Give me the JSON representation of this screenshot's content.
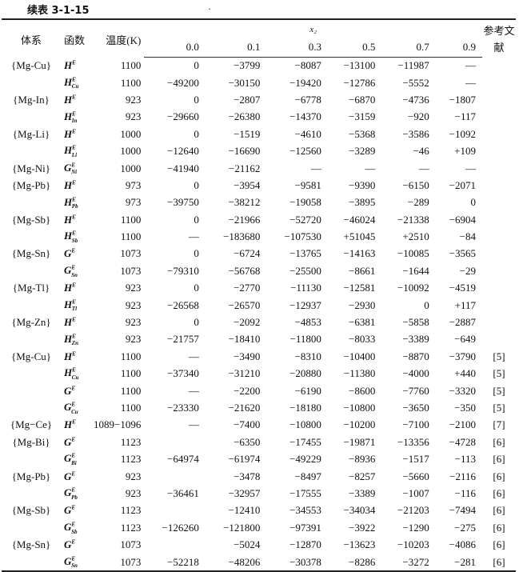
{
  "caption": "续表 3-1-15",
  "header": {
    "system": "体系",
    "function": "函数",
    "temperature": "温度(K)",
    "x_label": "x₂",
    "x_values": [
      "0.0",
      "0.1",
      "0.3",
      "0.5",
      "0.7",
      "0.9"
    ],
    "ref": "参考文献"
  },
  "rows": [
    [
      "{Mg-Cu}",
      "H",
      "",
      "1100",
      "0",
      "−3799",
      "−8087",
      "−13100",
      "−11987",
      "—",
      ""
    ],
    [
      "",
      "H",
      "Cu",
      "1100",
      "−49200",
      "−30150",
      "−19420",
      "−12786",
      "−5552",
      "—",
      ""
    ],
    [
      "{Mg-In}",
      "H",
      "",
      "923",
      "0",
      "−2807",
      "−6778",
      "−6870",
      "−4736",
      "−1807",
      ""
    ],
    [
      "",
      "H",
      "In",
      "923",
      "−29660",
      "−26380",
      "−14370",
      "−3159",
      "−920",
      "−117",
      ""
    ],
    [
      "{Mg-Li}",
      "H",
      "",
      "1000",
      "0",
      "−1519",
      "−4610",
      "−5368",
      "−3586",
      "−1092",
      ""
    ],
    [
      "",
      "H",
      "Li",
      "1000",
      "−12640",
      "−16690",
      "−12560",
      "−3289",
      "−46",
      "+109",
      ""
    ],
    [
      "{Mg-Ni}",
      "G",
      "Ni",
      "1000",
      "−41940",
      "−21162",
      "—",
      "—",
      "—",
      "—",
      ""
    ],
    [
      "{Mg-Pb}",
      "H",
      "",
      "973",
      "0",
      "−3954",
      "−9581",
      "−9390",
      "−6150",
      "−2071",
      ""
    ],
    [
      "",
      "H",
      "Pb",
      "973",
      "−39750",
      "−38212",
      "−19058",
      "−3895",
      "−289",
      "0",
      ""
    ],
    [
      "{Mg-Sb}",
      "H",
      "",
      "1100",
      "0",
      "−21966",
      "−52720",
      "−46024",
      "−21338",
      "−6904",
      ""
    ],
    [
      "",
      "H",
      "Sb",
      "1100",
      "—",
      "−183680",
      "−107530",
      "+51045",
      "+2510",
      "−84",
      ""
    ],
    [
      "{Mg-Sn}",
      "G",
      "",
      "1073",
      "0",
      "−6724",
      "−13765",
      "−14163",
      "−10085",
      "−3565",
      ""
    ],
    [
      "",
      "G",
      "Sn",
      "1073",
      "−79310",
      "−56768",
      "−25500",
      "−8661",
      "−1644",
      "−29",
      ""
    ],
    [
      "{Mg-Tl}",
      "H",
      "",
      "923",
      "0",
      "−2770",
      "−11130",
      "−12581",
      "−10092",
      "−4519",
      ""
    ],
    [
      "",
      "H",
      "Tl",
      "923",
      "−26568",
      "−26570",
      "−12937",
      "−2930",
      "0",
      "+117",
      ""
    ],
    [
      "{Mg-Zn}",
      "H",
      "",
      "923",
      "0",
      "−2092",
      "−4853",
      "−6381",
      "−5858",
      "−2887",
      ""
    ],
    [
      "",
      "H",
      "Zn",
      "923",
      "−21757",
      "−18410",
      "−11800",
      "−8033",
      "−3389",
      "−649",
      ""
    ],
    [
      "{Mg-Cu}",
      "H",
      "",
      "1100",
      "—",
      "−3490",
      "−8310",
      "−10400",
      "−8870",
      "−3790",
      "[5]"
    ],
    [
      "",
      "H",
      "Cu",
      "1100",
      "−37340",
      "−31210",
      "−20880",
      "−11380",
      "−4000",
      "+440",
      "[5]"
    ],
    [
      "",
      "G",
      "",
      "1100",
      "—",
      "−2200",
      "−6190",
      "−8600",
      "−7760",
      "−3320",
      "[5]"
    ],
    [
      "",
      "G",
      "Cu",
      "1100",
      "−23330",
      "−21620",
      "−18180",
      "−10800",
      "−3650",
      "−350",
      "[5]"
    ],
    [
      "{Mg−Ce}",
      "H",
      "",
      "1089−1096",
      "—",
      "−7400",
      "−10800",
      "−10200",
      "−7100",
      "−2100",
      "[7]"
    ],
    [
      "{Mg-Bi}",
      "G",
      "",
      "1123",
      "",
      "−6350",
      "−17455",
      "−19871",
      "−13356",
      "−4728",
      "[6]"
    ],
    [
      "",
      "G",
      "Bi",
      "1123",
      "−64974",
      "−61974",
      "−49229",
      "−8936",
      "−1517",
      "−113",
      "[6]"
    ],
    [
      "{Mg-Pb}",
      "G",
      "",
      "923",
      "",
      "−3478",
      "−8497",
      "−8257",
      "−5660",
      "−2116",
      "[6]"
    ],
    [
      "",
      "G",
      "Pb",
      "923",
      "−36461",
      "−32957",
      "−17555",
      "−3389",
      "−1007",
      "−116",
      "[6]"
    ],
    [
      "{Mg-Sb}",
      "G",
      "",
      "1123",
      "",
      "−12410",
      "−34553",
      "−34034",
      "−21203",
      "−7494",
      "[6]"
    ],
    [
      "",
      "G",
      "Sb",
      "1123",
      "−126260",
      "−121800",
      "−97391",
      "−3922",
      "−1290",
      "−275",
      "[6]"
    ],
    [
      "{Mg-Sn}",
      "G",
      "",
      "1073",
      "",
      "−5024",
      "−12870",
      "−13623",
      "−10203",
      "−4086",
      "[6]"
    ],
    [
      "",
      "G",
      "Sn",
      "1073",
      "−52218",
      "−48206",
      "−30378",
      "−8286",
      "−3272",
      "−281",
      "[6]"
    ]
  ],
  "superscript": "E"
}
